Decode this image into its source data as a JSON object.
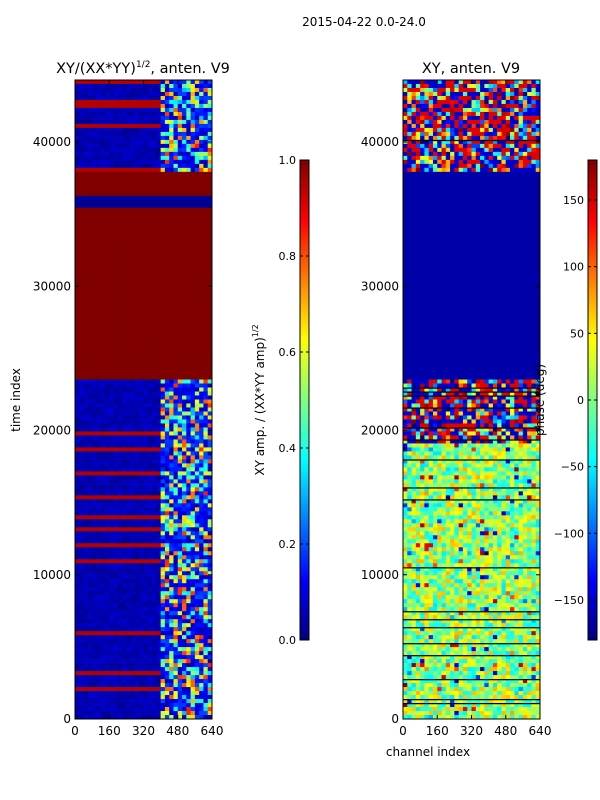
{
  "suptitle": "2015-04-22 0.0-24.0",
  "chart_data": [
    {
      "type": "heatmap",
      "title": "XY/(XX*YY)",
      "title_sup": "1/2",
      "title_suffix": ", anten. V9",
      "xlabel": "",
      "ylabel": "time index",
      "xlim": [
        0,
        640
      ],
      "ylim": [
        0,
        44300
      ],
      "xticks": [
        0,
        160,
        320,
        480,
        640
      ],
      "yticks": [
        0,
        10000,
        20000,
        30000,
        40000
      ],
      "colorbar": {
        "label_main": "XY amp. / (XX*YY amp)",
        "label_sup": "1/2",
        "range": [
          0.0,
          1.0
        ],
        "ticks": [
          "0.0",
          "0.2",
          "0.4",
          "0.6",
          "0.8",
          "1.0"
        ],
        "colormap": "jet"
      },
      "saturated_band": [
        23500,
        37800
      ],
      "saturated_band2": [
        35500,
        36200
      ],
      "active_channels": [
        400,
        640
      ]
    },
    {
      "type": "heatmap",
      "title": "XY, anten. V9",
      "xlabel": "channel index",
      "ylabel": "",
      "xlim": [
        0,
        640
      ],
      "ylim": [
        0,
        44300
      ],
      "xticks": [
        0,
        160,
        320,
        480,
        640
      ],
      "yticks": [
        0,
        10000,
        20000,
        30000,
        40000
      ],
      "colorbar": {
        "label_main": "phase (deg)",
        "range": [
          -180,
          180
        ],
        "ticks": [
          "−150",
          "−100",
          "−50",
          "0",
          "50",
          "100",
          "150"
        ],
        "colormap": "jet"
      },
      "saturated_band": [
        23500,
        37800
      ]
    }
  ]
}
